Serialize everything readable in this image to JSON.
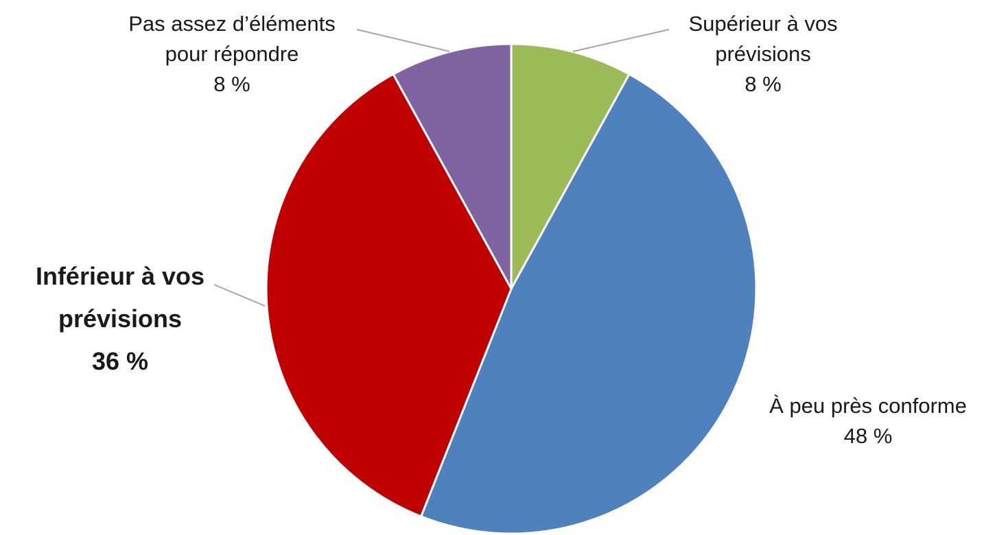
{
  "chart_data": {
    "type": "pie",
    "start_angle_deg": 0,
    "direction": "clockwise",
    "slices": [
      {
        "label_lines": [
          "Supérieur à vos",
          "prévisions"
        ],
        "value": 8,
        "value_text": "8 %",
        "color": "#9BBB59",
        "label_color": "#1a1a1a",
        "emphasized": false
      },
      {
        "label_lines": [
          "À peu près conforme"
        ],
        "value": 48,
        "value_text": "48 %",
        "color": "#4F81BD",
        "label_color": "#1a1a1a",
        "emphasized": false
      },
      {
        "label_lines": [
          "Inférieur à vos",
          "prévisions"
        ],
        "value": 36,
        "value_text": "36 %",
        "color": "#C00000",
        "label_color": "#C00000",
        "emphasized": true
      },
      {
        "label_lines": [
          "Pas assez d’éléments",
          "pour répondre"
        ],
        "value": 8,
        "value_text": "8 %",
        "color": "#8064A2",
        "label_color": "#1a1a1a",
        "emphasized": false
      }
    ],
    "slice_border_color": "#ffffff",
    "leader_line_color": "#a6a6a6"
  }
}
